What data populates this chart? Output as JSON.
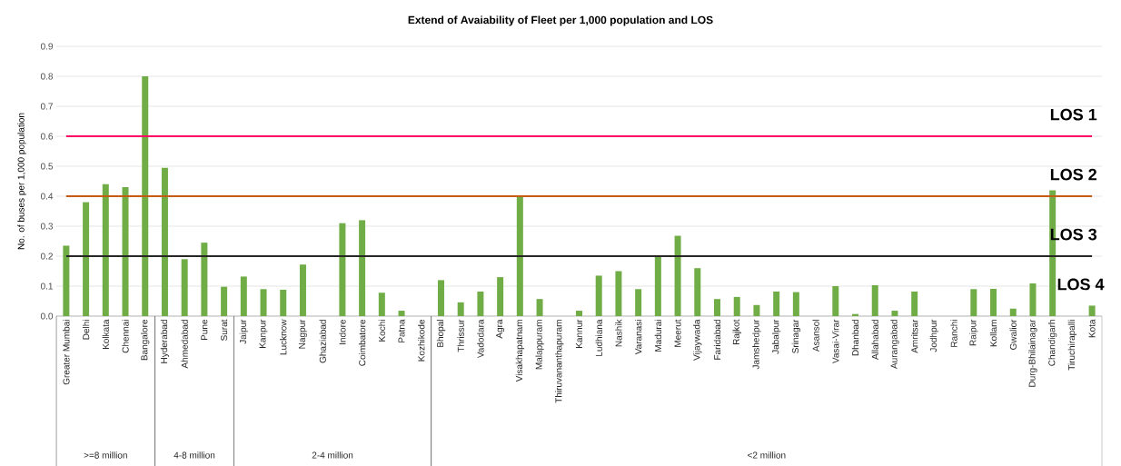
{
  "chart_data": {
    "type": "bar",
    "title": "Extend of Avaiability  of Fleet per 1,000 population and LOS",
    "ylabel": "No. of buses per 1,000 population",
    "categories": [
      "Greater Mumbai",
      "Delhi",
      "Kolkata",
      "Chennai",
      "Bangalore",
      "Hyderabad",
      "Ahmedabad",
      "Pune",
      "Surat",
      "Jaipur",
      "Kanpur",
      "Lucknow",
      "Nagpur",
      "Ghaziabad",
      "Indore",
      "Coimbatore",
      "Kochi",
      "Patna",
      "Kozhikode",
      "Bhopal",
      "Thrissur",
      "Vadodara",
      "Agra",
      "Visakhapatnam",
      "Malappuram",
      "Thiruvananthapuram",
      "Kannur",
      "Ludhiana",
      "Nashik",
      "Varanasi",
      "Madurai",
      "Meerut",
      "Vijaywada",
      "Faridabad",
      "Rajkot",
      "Jamshedpur",
      "Jabalpur",
      "Srinagar",
      "Asansol",
      "Vasai-Virar",
      "Dhanbad",
      "Allahabad",
      "Aurangabad",
      "Amritsar",
      "Jodhpur",
      "Ranchi",
      "Raipur",
      "Kollam",
      "Gwalior",
      "Durg-Bhilainagar",
      "Chandigarh",
      "Tiruchirapalli",
      "Kota"
    ],
    "values": [
      0.235,
      0.38,
      0.44,
      0.43,
      0.8,
      0.495,
      0.19,
      0.245,
      0.098,
      0.132,
      0.09,
      0.088,
      0.172,
      null,
      0.31,
      0.32,
      0.078,
      0.018,
      null,
      0.12,
      0.046,
      0.082,
      0.13,
      0.4,
      0.057,
      null,
      0.018,
      0.135,
      0.15,
      0.09,
      0.2,
      0.268,
      0.16,
      0.057,
      0.064,
      0.037,
      0.082,
      0.08,
      null,
      0.1,
      0.007,
      0.103,
      0.018,
      0.082,
      null,
      null,
      0.09,
      0.091,
      0.025,
      0.109,
      0.42,
      null,
      0.035
    ],
    "color": "#70ad47",
    "ylim": [
      0,
      0.9
    ],
    "yticks": [
      {
        "value": 0,
        "label": "0.0"
      },
      0.1,
      0.2,
      0.3,
      0.4,
      0.5,
      0.6,
      0.7,
      0.8,
      0.9
    ],
    "grid": "y",
    "ref_lines": [
      {
        "axis": "y",
        "value": 0.6,
        "label": "LOS 1",
        "color": "#ff0066"
      },
      {
        "axis": "y",
        "value": 0.4,
        "label": "LOS 2",
        "color": "#c55a11"
      },
      {
        "axis": "y",
        "value": 0.2,
        "label": "LOS 3",
        "color": "#262626"
      }
    ],
    "annotations": [
      ">=8 million",
      "4-8 million",
      "2-4 million",
      "<2 million",
      "LOS 4"
    ]
  }
}
